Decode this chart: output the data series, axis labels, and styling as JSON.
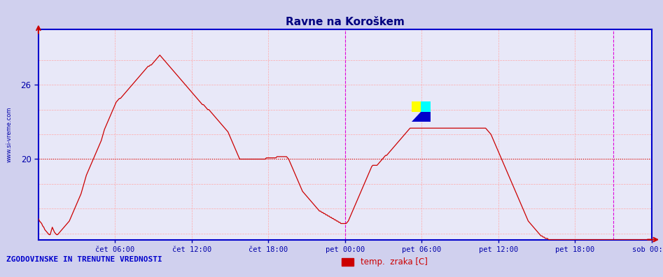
{
  "title": "Ravne na Koroškem",
  "title_color": "#000080",
  "background_color": "#d0d0ee",
  "plot_bg_color": "#e8e8f8",
  "ylabel_text": "www.si-vreme.com",
  "ylabel_color": "#0000aa",
  "xlabel_labels": [
    "čet 06:00",
    "čet 12:00",
    "čet 18:00",
    "pet 00:00",
    "pet 06:00",
    "pet 12:00",
    "pet 18:00",
    "sob 00:00"
  ],
  "xlabel_color": "#0000aa",
  "yticks": [
    20,
    26
  ],
  "ytick_color": "#0000aa",
  "ylim": [
    13.5,
    30.5
  ],
  "xlim": [
    0,
    576
  ],
  "line_color": "#cc0000",
  "grid_color_v": "#ffaaaa",
  "grid_color_h": "#ffaaaa",
  "hline_color": "#cc0000",
  "hline_y": 20,
  "vline_color": "#dd00dd",
  "vline_x": 288,
  "vline_x2": 540,
  "border_color": "#0000cc",
  "legend_label": "temp.  zraka [C]",
  "legend_color": "#cc0000",
  "footer_text": "ZGODOVINSKE IN TRENUTNE VREDNOSTI",
  "footer_color": "#0000cc",
  "n_points": 576,
  "temperature_data": [
    15.2,
    15.0,
    14.9,
    14.8,
    14.6,
    14.5,
    14.3,
    14.2,
    14.1,
    14.0,
    13.9,
    13.9,
    14.2,
    14.5,
    14.3,
    14.1,
    14.0,
    13.9,
    13.9,
    14.0,
    14.1,
    14.2,
    14.3,
    14.4,
    14.5,
    14.6,
    14.7,
    14.8,
    14.9,
    15.0,
    15.2,
    15.4,
    15.6,
    15.8,
    16.0,
    16.2,
    16.4,
    16.6,
    16.8,
    17.0,
    17.2,
    17.5,
    17.8,
    18.1,
    18.4,
    18.7,
    18.9,
    19.1,
    19.3,
    19.5,
    19.7,
    19.9,
    20.1,
    20.3,
    20.5,
    20.7,
    20.9,
    21.1,
    21.3,
    21.5,
    21.8,
    22.1,
    22.4,
    22.6,
    22.8,
    23.0,
    23.2,
    23.4,
    23.6,
    23.8,
    24.0,
    24.2,
    24.4,
    24.6,
    24.7,
    24.8,
    24.9,
    24.9,
    25.0,
    25.1,
    25.2,
    25.3,
    25.4,
    25.5,
    25.6,
    25.7,
    25.8,
    25.9,
    26.0,
    26.1,
    26.2,
    26.3,
    26.4,
    26.5,
    26.6,
    26.7,
    26.8,
    26.9,
    27.0,
    27.1,
    27.2,
    27.3,
    27.4,
    27.5,
    27.5,
    27.6,
    27.6,
    27.7,
    27.8,
    27.9,
    28.0,
    28.1,
    28.2,
    28.3,
    28.4,
    28.3,
    28.2,
    28.1,
    28.0,
    27.9,
    27.8,
    27.7,
    27.6,
    27.5,
    27.4,
    27.3,
    27.2,
    27.1,
    27.0,
    26.9,
    26.8,
    26.7,
    26.6,
    26.5,
    26.4,
    26.3,
    26.2,
    26.1,
    26.0,
    25.9,
    25.8,
    25.7,
    25.6,
    25.5,
    25.4,
    25.3,
    25.2,
    25.1,
    25.0,
    24.9,
    24.8,
    24.7,
    24.6,
    24.5,
    24.4,
    24.4,
    24.3,
    24.2,
    24.1,
    24.0,
    24.0,
    23.9,
    23.8,
    23.7,
    23.6,
    23.5,
    23.4,
    23.3,
    23.2,
    23.1,
    23.0,
    22.9,
    22.8,
    22.7,
    22.6,
    22.5,
    22.4,
    22.3,
    22.2,
    22.0,
    21.8,
    21.6,
    21.4,
    21.2,
    21.0,
    20.8,
    20.6,
    20.4,
    20.2,
    20.0,
    20.0,
    20.0,
    20.0,
    20.0,
    20.0,
    20.0,
    20.0,
    20.0,
    20.0,
    20.0,
    20.0,
    20.0,
    20.0,
    20.0,
    20.0,
    20.0,
    20.0,
    20.0,
    20.0,
    20.0,
    20.0,
    20.0,
    20.0,
    20.0,
    20.1,
    20.1,
    20.1,
    20.1,
    20.1,
    20.1,
    20.1,
    20.1,
    20.1,
    20.1,
    20.2,
    20.2,
    20.2,
    20.2,
    20.2,
    20.2,
    20.2,
    20.2,
    20.2,
    20.2,
    20.1,
    20.0,
    19.8,
    19.6,
    19.4,
    19.2,
    19.0,
    18.8,
    18.6,
    18.4,
    18.2,
    18.0,
    17.8,
    17.6,
    17.4,
    17.3,
    17.2,
    17.1,
    17.0,
    16.9,
    16.8,
    16.7,
    16.6,
    16.5,
    16.4,
    16.3,
    16.2,
    16.1,
    16.0,
    15.9,
    15.8,
    15.8,
    15.7,
    15.7,
    15.6,
    15.6,
    15.5,
    15.5,
    15.4,
    15.4,
    15.3,
    15.3,
    15.2,
    15.2,
    15.1,
    15.1,
    15.0,
    15.0,
    14.9,
    14.9,
    14.8,
    14.8,
    14.8,
    14.8,
    14.8,
    14.8,
    14.9,
    15.0,
    15.2,
    15.4,
    15.6,
    15.8,
    16.0,
    16.2,
    16.4,
    16.6,
    16.8,
    17.0,
    17.2,
    17.4,
    17.6,
    17.8,
    18.0,
    18.2,
    18.4,
    18.6,
    18.8,
    19.0,
    19.2,
    19.4,
    19.5,
    19.5,
    19.5,
    19.5,
    19.5,
    19.6,
    19.7,
    19.8,
    19.9,
    20.0,
    20.1,
    20.2,
    20.3,
    20.3,
    20.4,
    20.5,
    20.6,
    20.7,
    20.8,
    20.9,
    21.0,
    21.1,
    21.2,
    21.3,
    21.4,
    21.5,
    21.6,
    21.7,
    21.8,
    21.9,
    22.0,
    22.1,
    22.2,
    22.3,
    22.4,
    22.5,
    22.5,
    22.5,
    22.5,
    22.5,
    22.5,
    22.5,
    22.5,
    22.5,
    22.5,
    22.5,
    22.5,
    22.5,
    22.5,
    22.5,
    22.5,
    22.5,
    22.5,
    22.5,
    22.5,
    22.5,
    22.5,
    22.5,
    22.5,
    22.5,
    22.5,
    22.5,
    22.5,
    22.5,
    22.5,
    22.5,
    22.5,
    22.5,
    22.5,
    22.5,
    22.5,
    22.5,
    22.5,
    22.5,
    22.5,
    22.5,
    22.5,
    22.5,
    22.5,
    22.5,
    22.5,
    22.5,
    22.5,
    22.5,
    22.5,
    22.5,
    22.5,
    22.5,
    22.5,
    22.5,
    22.5,
    22.5,
    22.5,
    22.5,
    22.5,
    22.5,
    22.5,
    22.5,
    22.5,
    22.5,
    22.5,
    22.5,
    22.5,
    22.5,
    22.5,
    22.5,
    22.5,
    22.4,
    22.3,
    22.2,
    22.1,
    22.0,
    21.8,
    21.6,
    21.4,
    21.2,
    21.0,
    20.8,
    20.6,
    20.4,
    20.2,
    20.0,
    19.8,
    19.6,
    19.4,
    19.2,
    19.0,
    18.8,
    18.6,
    18.4,
    18.2,
    18.0,
    17.8,
    17.6,
    17.4,
    17.2,
    17.0,
    16.8,
    16.6,
    16.4,
    16.2,
    16.0,
    15.8,
    15.6,
    15.4,
    15.2,
    15.0,
    14.9,
    14.8,
    14.7,
    14.6,
    14.5,
    14.4,
    14.3,
    14.2,
    14.1,
    14.0,
    13.9,
    13.8,
    13.8,
    13.7,
    13.7,
    13.6,
    13.6,
    13.6,
    13.5,
    13.5,
    13.5,
    13.5,
    13.5,
    13.5,
    13.5,
    13.5,
    13.5,
    13.5,
    13.5,
    13.5,
    13.5,
    13.5,
    13.5,
    13.5,
    13.5,
    13.5,
    13.5,
    13.5,
    13.5,
    13.5,
    13.5,
    13.5,
    13.5,
    13.5,
    13.5,
    13.5,
    13.5,
    13.5,
    13.5,
    13.5,
    13.5,
    13.5,
    13.5,
    13.5,
    13.5,
    13.5,
    13.5,
    13.5,
    13.5,
    13.5,
    13.5,
    13.5,
    13.5,
    13.5,
    13.5,
    13.5,
    13.5,
    13.5,
    13.5,
    13.5,
    13.5,
    13.5,
    13.5,
    13.5,
    13.5,
    13.5,
    13.5,
    13.5,
    13.5,
    13.5,
    13.5,
    13.5,
    13.5,
    13.5,
    13.5,
    13.5,
    13.5,
    13.5,
    13.5,
    13.5,
    13.5,
    13.5,
    13.5,
    13.5,
    13.5,
    13.5,
    13.5,
    13.5,
    13.5,
    13.5,
    13.5,
    13.5,
    13.5,
    13.5,
    13.5,
    13.5,
    13.5,
    13.5,
    13.5,
    13.5,
    13.5,
    13.5,
    13.5,
    13.5,
    13.5,
    13.5,
    13.4,
    13.4,
    13.4
  ]
}
